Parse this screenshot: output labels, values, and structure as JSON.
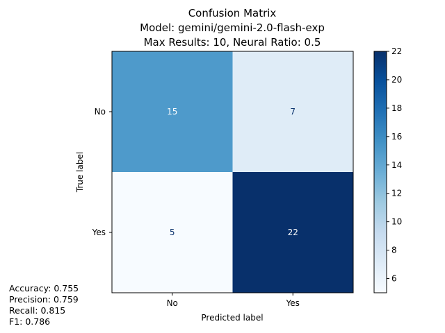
{
  "chart_data": {
    "type": "heatmap",
    "title_lines": [
      "Confusion Matrix",
      "Model: gemini/gemini-2.0-flash-exp",
      "Max Results: 10, Neural Ratio: 0.5"
    ],
    "xlabel": "Predicted label",
    "ylabel": "True label",
    "x_categories": [
      "No",
      "Yes"
    ],
    "y_categories": [
      "No",
      "Yes"
    ],
    "matrix": [
      [
        15,
        7
      ],
      [
        5,
        22
      ]
    ],
    "colormap": "Blues",
    "colorbar": {
      "range": [
        5,
        22
      ],
      "ticks": [
        6,
        8,
        10,
        12,
        14,
        16,
        18,
        20,
        22
      ]
    }
  },
  "metrics": {
    "accuracy": "Accuracy: 0.755",
    "precision": "Precision: 0.759",
    "recall": "Recall: 0.815",
    "f1": "F1: 0.786"
  }
}
